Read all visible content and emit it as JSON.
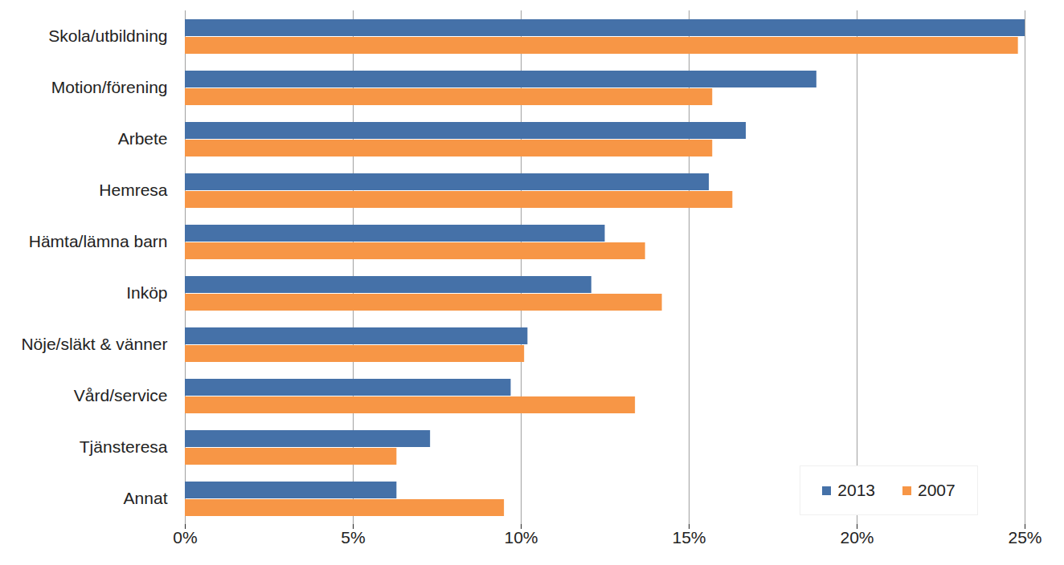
{
  "chart_data": {
    "type": "bar",
    "orientation": "horizontal",
    "categories": [
      "Skola/utbildning",
      "Motion/förening",
      "Arbete",
      "Hemresa",
      "Hämta/lämna barn",
      "Inköp",
      "Nöje/släkt & vänner",
      "Vård/service",
      "Tjänsteresa",
      "Annat"
    ],
    "series": [
      {
        "name": "2013",
        "color": "#4571a8",
        "values": [
          25.0,
          18.8,
          16.7,
          15.6,
          12.5,
          12.1,
          10.2,
          9.7,
          7.3,
          6.3
        ]
      },
      {
        "name": "2007",
        "color": "#f79646",
        "values": [
          24.8,
          15.7,
          15.7,
          16.3,
          13.7,
          14.2,
          10.1,
          13.4,
          6.3,
          9.5
        ]
      }
    ],
    "xlim": [
      0,
      25
    ],
    "xticks": [
      {
        "value": 0,
        "label": "0%"
      },
      {
        "value": 5,
        "label": "5%"
      },
      {
        "value": 10,
        "label": "10%"
      },
      {
        "value": 15,
        "label": "15%"
      },
      {
        "value": 20,
        "label": "20%"
      },
      {
        "value": 25,
        "label": "25%"
      }
    ],
    "grid": true,
    "legend": "lower right"
  }
}
